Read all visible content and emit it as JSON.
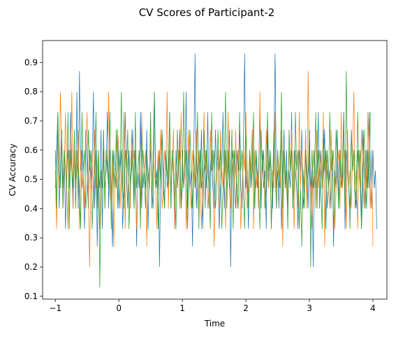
{
  "chart_data": {
    "type": "line",
    "title": "CV Scores of Participant-2",
    "xlabel": "Time",
    "ylabel": "CV Accuracy",
    "xlim": [
      -1.2,
      4.22
    ],
    "ylim": [
      0.09,
      0.975
    ],
    "x_ticks": [
      -1,
      0,
      1,
      2,
      3,
      4
    ],
    "x_tick_labels": [
      "−1",
      "0",
      "1",
      "2",
      "3",
      "4"
    ],
    "y_ticks": [
      0.1,
      0.2,
      0.3,
      0.4,
      0.5,
      0.6,
      0.7,
      0.8,
      0.9
    ],
    "y_tick_labels": [
      "0.1",
      "0.2",
      "0.3",
      "0.4",
      "0.5",
      "0.6",
      "0.7",
      "0.8",
      "0.9"
    ],
    "grid": false,
    "legend": "none",
    "x_start": -1.0,
    "x_step": 0.02,
    "series": [
      {
        "color": "#1f77b4",
        "values": [
          0.47,
          0.6,
          0.73,
          0.4,
          0.53,
          0.67,
          0.47,
          0.6,
          0.33,
          0.53,
          0.6,
          0.47,
          0.73,
          0.53,
          0.4,
          0.6,
          0.47,
          0.8,
          0.4,
          0.87,
          0.53,
          0.6,
          0.47,
          0.33,
          0.67,
          0.53,
          0.4,
          0.6,
          0.47,
          0.53,
          0.8,
          0.4,
          0.6,
          0.27,
          0.53,
          0.47,
          0.67,
          0.33,
          0.6,
          0.47,
          0.53,
          0.73,
          0.4,
          0.6,
          0.47,
          0.27,
          0.6,
          0.53,
          0.47,
          0.67,
          0.4,
          0.53,
          0.6,
          0.33,
          0.47,
          0.73,
          0.53,
          0.4,
          0.6,
          0.47,
          0.53,
          0.67,
          0.4,
          0.6,
          0.27,
          0.53,
          0.47,
          0.73,
          0.4,
          0.6,
          0.53,
          0.47,
          0.67,
          0.33,
          0.53,
          0.6,
          0.47,
          0.4,
          0.8,
          0.53,
          0.47,
          0.6,
          0.2,
          0.53,
          0.67,
          0.47,
          0.4,
          0.6,
          0.53,
          0.47,
          0.73,
          0.4,
          0.6,
          0.53,
          0.33,
          0.6,
          0.47,
          0.53,
          0.67,
          0.4,
          0.6,
          0.47,
          0.53,
          0.8,
          0.4,
          0.6,
          0.47,
          0.53,
          0.27,
          0.6,
          0.93,
          0.4,
          0.53,
          0.6,
          0.47,
          0.67,
          0.33,
          0.53,
          0.6,
          0.47,
          0.73,
          0.4,
          0.53,
          0.6,
          0.47,
          0.4,
          0.67,
          0.53,
          0.6,
          0.33,
          0.47,
          0.53,
          0.73,
          0.4,
          0.6,
          0.47,
          0.53,
          0.67,
          0.2,
          0.53,
          0.6,
          0.47,
          0.4,
          0.6,
          0.53,
          0.67,
          0.47,
          0.4,
          0.6,
          0.93,
          0.47,
          0.53,
          0.33,
          0.6,
          0.47,
          0.67,
          0.53,
          0.4,
          0.6,
          0.47,
          0.53,
          0.73,
          0.4,
          0.6,
          0.47,
          0.53,
          0.33,
          0.67,
          0.47,
          0.6,
          0.53,
          0.4,
          0.6,
          0.93,
          0.47,
          0.53,
          0.4,
          0.6,
          0.33,
          0.53,
          0.67,
          0.47,
          0.6,
          0.4,
          0.53,
          0.47,
          0.73,
          0.4,
          0.6,
          0.53,
          0.47,
          0.33,
          0.6,
          0.53,
          0.67,
          0.4,
          0.47,
          0.6,
          0.53,
          0.4,
          0.67,
          0.47,
          0.53,
          0.2,
          0.6,
          0.47,
          0.53,
          0.73,
          0.4,
          0.6,
          0.47,
          0.53,
          0.67,
          0.33,
          0.6,
          0.47,
          0.53,
          0.4,
          0.6,
          0.27,
          0.53,
          0.47,
          0.67,
          0.4,
          0.6,
          0.53,
          0.47,
          0.73,
          0.33,
          0.6,
          0.53,
          0.47,
          0.4,
          0.67,
          0.53,
          0.6,
          0.47,
          0.4,
          0.6,
          0.53,
          0.47,
          0.33,
          0.67,
          0.53,
          0.4,
          0.6,
          0.47,
          0.73,
          0.53,
          0.4,
          0.6,
          0.47,
          0.53,
          0.33
        ]
      },
      {
        "color": "#ff7f0e",
        "values": [
          0.53,
          0.33,
          0.67,
          0.47,
          0.8,
          0.6,
          0.4,
          0.53,
          0.73,
          0.47,
          0.33,
          0.6,
          0.53,
          0.8,
          0.4,
          0.6,
          0.47,
          0.53,
          0.67,
          0.33,
          0.6,
          0.47,
          0.53,
          0.4,
          0.6,
          0.73,
          0.47,
          0.2,
          0.53,
          0.6,
          0.4,
          0.67,
          0.47,
          0.53,
          0.6,
          0.33,
          0.53,
          0.47,
          0.67,
          0.4,
          0.6,
          0.53,
          0.8,
          0.47,
          0.4,
          0.6,
          0.27,
          0.53,
          0.47,
          0.67,
          0.6,
          0.4,
          0.53,
          0.47,
          0.73,
          0.33,
          0.6,
          0.53,
          0.47,
          0.4,
          0.67,
          0.53,
          0.6,
          0.47,
          0.33,
          0.53,
          0.6,
          0.4,
          0.73,
          0.47,
          0.53,
          0.6,
          0.27,
          0.53,
          0.47,
          0.67,
          0.4,
          0.6,
          0.53,
          0.47,
          0.33,
          0.6,
          0.53,
          0.67,
          0.4,
          0.47,
          0.6,
          0.53,
          0.8,
          0.4,
          0.6,
          0.47,
          0.53,
          0.67,
          0.33,
          0.53,
          0.47,
          0.6,
          0.4,
          0.73,
          0.53,
          0.47,
          0.6,
          0.33,
          0.53,
          0.67,
          0.47,
          0.4,
          0.6,
          0.53,
          0.47,
          0.67,
          0.4,
          0.6,
          0.53,
          0.33,
          0.47,
          0.73,
          0.53,
          0.6,
          0.4,
          0.47,
          0.67,
          0.53,
          0.6,
          0.27,
          0.47,
          0.53,
          0.6,
          0.4,
          0.67,
          0.53,
          0.47,
          0.6,
          0.33,
          0.53,
          0.73,
          0.47,
          0.4,
          0.6,
          0.53,
          0.47,
          0.67,
          0.4,
          0.6,
          0.53,
          0.33,
          0.47,
          0.6,
          0.53,
          0.73,
          0.4,
          0.47,
          0.6,
          0.53,
          0.67,
          0.33,
          0.6,
          0.47,
          0.53,
          0.4,
          0.8,
          0.47,
          0.53,
          0.6,
          0.4,
          0.67,
          0.53,
          0.47,
          0.6,
          0.33,
          0.53,
          0.47,
          0.73,
          0.4,
          0.6,
          0.53,
          0.47,
          0.67,
          0.27,
          0.6,
          0.53,
          0.47,
          0.4,
          0.6,
          0.53,
          0.67,
          0.47,
          0.33,
          0.6,
          0.53,
          0.4,
          0.73,
          0.47,
          0.6,
          0.53,
          0.47,
          0.67,
          0.4,
          0.87,
          0.53,
          0.47,
          0.33,
          0.6,
          0.53,
          0.4,
          0.67,
          0.47,
          0.6,
          0.53,
          0.47,
          0.73,
          0.27,
          0.6,
          0.53,
          0.47,
          0.4,
          0.67,
          0.53,
          0.6,
          0.33,
          0.47,
          0.53,
          0.6,
          0.4,
          0.73,
          0.47,
          0.53,
          0.6,
          0.33,
          0.67,
          0.47,
          0.53,
          0.4,
          0.6,
          0.8,
          0.47,
          0.53,
          0.33,
          0.6,
          0.47,
          0.67,
          0.53,
          0.4,
          0.6,
          0.47,
          0.73,
          0.53,
          0.4,
          0.6,
          0.27
        ]
      },
      {
        "color": "#2ca02c",
        "values": [
          0.6,
          0.4,
          0.73,
          0.53,
          0.47,
          0.67,
          0.4,
          0.6,
          0.53,
          0.47,
          0.73,
          0.33,
          0.6,
          0.53,
          0.47,
          0.67,
          0.4,
          0.6,
          0.53,
          0.47,
          0.33,
          0.73,
          0.53,
          0.6,
          0.4,
          0.47,
          0.67,
          0.53,
          0.6,
          0.33,
          0.47,
          0.53,
          0.73,
          0.4,
          0.6,
          0.13,
          0.53,
          0.47,
          0.67,
          0.4,
          0.6,
          0.53,
          0.47,
          0.73,
          0.33,
          0.6,
          0.53,
          0.47,
          0.67,
          0.4,
          0.6,
          0.53,
          0.8,
          0.47,
          0.4,
          0.6,
          0.53,
          0.67,
          0.33,
          0.47,
          0.6,
          0.53,
          0.4,
          0.73,
          0.47,
          0.53,
          0.6,
          0.33,
          0.67,
          0.47,
          0.53,
          0.4,
          0.6,
          0.53,
          0.47,
          0.73,
          0.4,
          0.6,
          0.8,
          0.47,
          0.53,
          0.33,
          0.6,
          0.47,
          0.67,
          0.53,
          0.4,
          0.6,
          0.47,
          0.53,
          0.73,
          0.4,
          0.6,
          0.53,
          0.47,
          0.33,
          0.67,
          0.53,
          0.6,
          0.4,
          0.47,
          0.8,
          0.53,
          0.6,
          0.33,
          0.47,
          0.67,
          0.53,
          0.4,
          0.6,
          0.47,
          0.53,
          0.73,
          0.33,
          0.6,
          0.47,
          0.53,
          0.67,
          0.4,
          0.6,
          0.53,
          0.47,
          0.33,
          0.73,
          0.53,
          0.6,
          0.4,
          0.47,
          0.67,
          0.53,
          0.6,
          0.33,
          0.47,
          0.53,
          0.8,
          0.4,
          0.6,
          0.47,
          0.53,
          0.67,
          0.33,
          0.6,
          0.53,
          0.47,
          0.4,
          0.73,
          0.53,
          0.6,
          0.47,
          0.33,
          0.67,
          0.53,
          0.4,
          0.6,
          0.47,
          0.53,
          0.73,
          0.4,
          0.6,
          0.53,
          0.47,
          0.33,
          0.67,
          0.53,
          0.6,
          0.4,
          0.47,
          0.73,
          0.53,
          0.6,
          0.33,
          0.47,
          0.67,
          0.53,
          0.4,
          0.6,
          0.47,
          0.53,
          0.8,
          0.4,
          0.6,
          0.47,
          0.53,
          0.33,
          0.67,
          0.53,
          0.6,
          0.4,
          0.47,
          0.73,
          0.53,
          0.6,
          0.33,
          0.47,
          0.27,
          0.53,
          0.4,
          0.6,
          0.47,
          0.53,
          0.67,
          0.2,
          0.6,
          0.47,
          0.53,
          0.73,
          0.4,
          0.6,
          0.53,
          0.47,
          0.33,
          0.67,
          0.53,
          0.6,
          0.4,
          0.47,
          0.73,
          0.53,
          0.6,
          0.33,
          0.47,
          0.67,
          0.53,
          0.4,
          0.6,
          0.47,
          0.53,
          0.73,
          0.4,
          0.87,
          0.53,
          0.47,
          0.33,
          0.67,
          0.53,
          0.6,
          0.4,
          0.47,
          0.73,
          0.53,
          0.6,
          0.33,
          0.47,
          0.67,
          0.53,
          0.4,
          0.6,
          0.47,
          0.73
        ]
      }
    ]
  }
}
